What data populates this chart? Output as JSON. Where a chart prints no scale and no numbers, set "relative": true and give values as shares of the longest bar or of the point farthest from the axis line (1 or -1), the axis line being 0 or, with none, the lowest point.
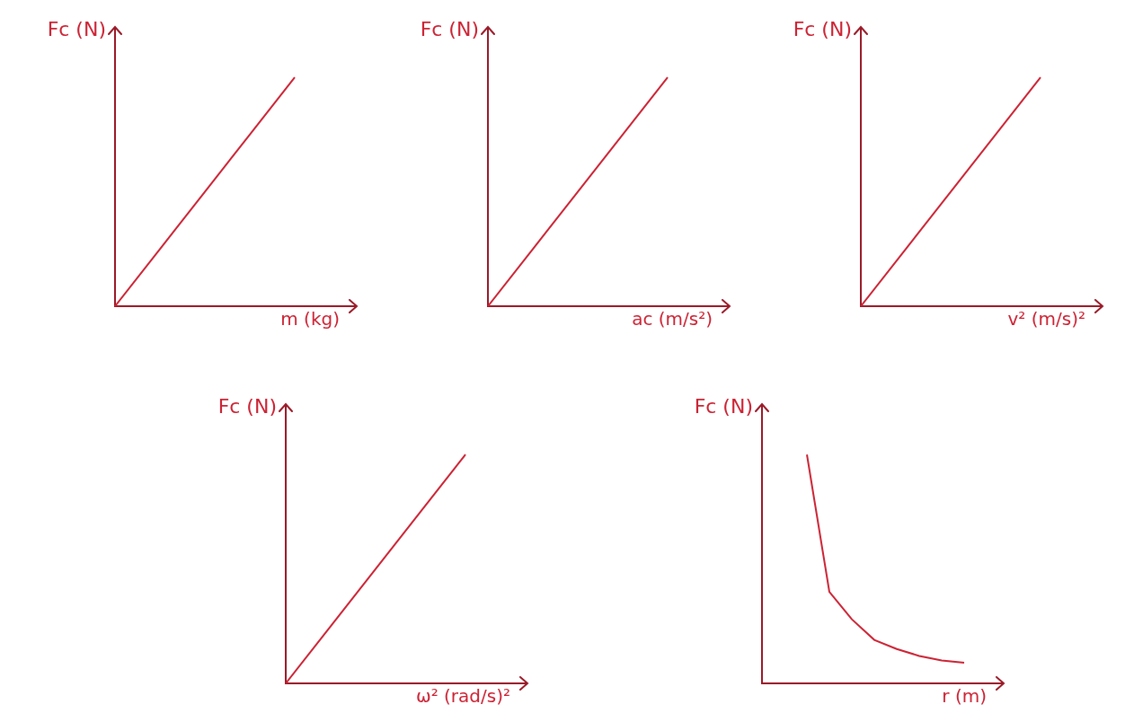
{
  "chart_data": [
    {
      "type": "line",
      "relative": true,
      "ylabel": "Fc (N)",
      "xlabel": "m (kg)",
      "color": "#cc2233",
      "marker": "none",
      "categories": [
        null,
        null,
        null,
        null,
        null,
        null
      ],
      "values": [
        0,
        0.25,
        0.5,
        0.75,
        1,
        null
      ]
    },
    {
      "type": "line",
      "relative": true,
      "ylabel": "Fc (N)",
      "xlabel": "ac (m/s²)",
      "color": "#cc2233",
      "marker": "none",
      "categories": [
        null,
        null,
        null,
        null,
        null,
        null
      ],
      "values": [
        0,
        0.25,
        0.5,
        0.75,
        1,
        null
      ]
    },
    {
      "type": "line",
      "relative": true,
      "ylabel": "Fc (N)",
      "xlabel": "v² (m/s)²",
      "color": "#cc2233",
      "marker": "none",
      "categories": [
        null,
        null,
        null,
        null,
        null,
        null
      ],
      "values": [
        0,
        0.25,
        0.5,
        0.75,
        1,
        null
      ]
    },
    {
      "type": "line",
      "relative": true,
      "ylabel": "Fc (N)",
      "xlabel": "ω² (rad/s)²",
      "color": "#cc2233",
      "marker": "none",
      "categories": [
        null,
        null,
        null,
        null,
        null,
        null
      ],
      "values": [
        0,
        0.25,
        0.5,
        0.75,
        1,
        null
      ]
    },
    {
      "type": "line",
      "relative": true,
      "ylabel": "Fc (N)",
      "xlabel": "r (m)",
      "color": "#cc2233",
      "marker": "none",
      "categories": [
        null,
        null,
        null,
        null,
        null,
        null,
        null,
        null,
        null,
        null,
        null
      ],
      "values": [
        null,
        null,
        1,
        0.4,
        0.28,
        0.19,
        0.15,
        0.12,
        0.1,
        0.09,
        null
      ]
    }
  ]
}
